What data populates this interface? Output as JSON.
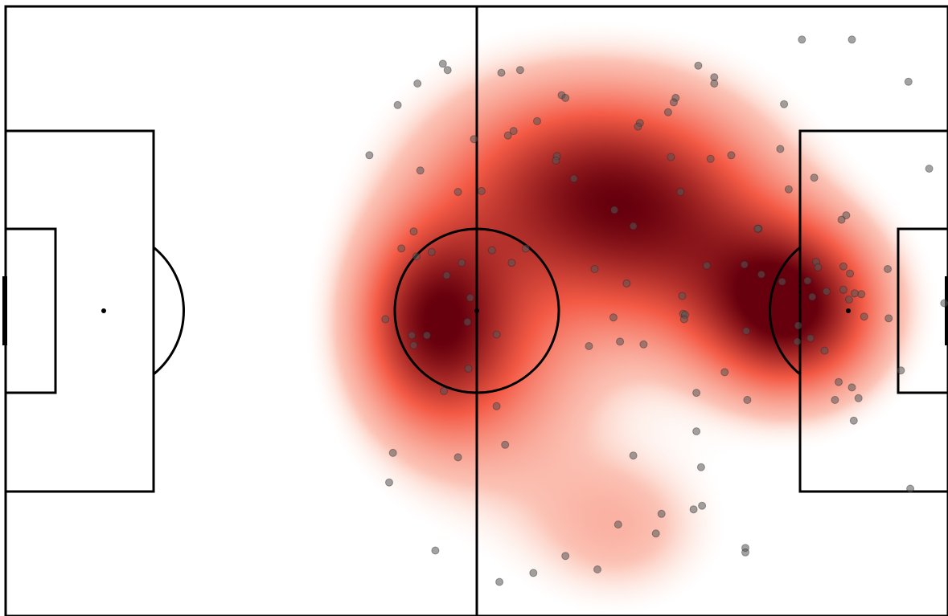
{
  "chart_data": {
    "type": "scatter",
    "description_free": true,
    "x_range": [
      0,
      100
    ],
    "y_range": [
      0,
      68
    ],
    "colors": {
      "heat_low": "#fee8dd",
      "heat_mid": "#f45a45",
      "heat_high": "#67000d",
      "marker": "#555555",
      "lines": "#000000",
      "pitch": "#ffffff"
    },
    "hotspots": [
      {
        "x": 83.3,
        "y": 34.3,
        "sx": 6.5,
        "sy": 6.5,
        "w": 1.0
      },
      {
        "x": 45.2,
        "y": 33.1,
        "sx": 5.5,
        "sy": 7.5,
        "w": 0.75
      },
      {
        "x": 59.0,
        "y": 48.2,
        "sx": 10.0,
        "sy": 8.0,
        "w": 0.62
      },
      {
        "x": 70.4,
        "y": 43.5,
        "sx": 9.0,
        "sy": 9.0,
        "w": 0.6
      },
      {
        "x": 65.0,
        "y": 10.0,
        "sx": 7.0,
        "sy": 6.0,
        "w": 0.22
      },
      {
        "x": 51.4,
        "y": 28.0,
        "sx": 8.0,
        "sy": 10.0,
        "w": 0.35
      }
    ],
    "points": [
      [
        84.5,
        64.3
      ],
      [
        89.8,
        64.3
      ],
      [
        46.4,
        61.6
      ],
      [
        46.9,
        60.9
      ],
      [
        52.6,
        60.6
      ],
      [
        54.6,
        60.9
      ],
      [
        73.5,
        61.4
      ],
      [
        75.2,
        60.1
      ],
      [
        75.2,
        59.4
      ],
      [
        95.8,
        59.6
      ],
      [
        43.7,
        59.4
      ],
      [
        41.6,
        57.0
      ],
      [
        59.0,
        58.1
      ],
      [
        59.4,
        57.8
      ],
      [
        71.1,
        57.8
      ],
      [
        70.9,
        57.3
      ],
      [
        70.3,
        56.2
      ],
      [
        82.6,
        57.1
      ],
      [
        56.4,
        55.2
      ],
      [
        67.3,
        55.0
      ],
      [
        67.1,
        54.6
      ],
      [
        53.9,
        54.1
      ],
      [
        53.3,
        53.6
      ],
      [
        49.7,
        53.2
      ],
      [
        38.6,
        51.4
      ],
      [
        58.5,
        51.3
      ],
      [
        58.4,
        50.8
      ],
      [
        70.6,
        51.2
      ],
      [
        74.8,
        51.0
      ],
      [
        77.0,
        51.4
      ],
      [
        82.2,
        52.1
      ],
      [
        44.0,
        49.7
      ],
      [
        60.3,
        48.8
      ],
      [
        85.8,
        48.9
      ],
      [
        83.1,
        47.6
      ],
      [
        98.0,
        49.9
      ],
      [
        48.0,
        47.3
      ],
      [
        50.5,
        47.4
      ],
      [
        71.6,
        47.3
      ],
      [
        64.6,
        45.3
      ],
      [
        89.2,
        44.7
      ],
      [
        88.7,
        44.2
      ],
      [
        66.6,
        43.5
      ],
      [
        79.9,
        43.2
      ],
      [
        43.3,
        42.9
      ],
      [
        79.8,
        43.2
      ],
      [
        42.0,
        41.0
      ],
      [
        55.2,
        41.0
      ],
      [
        51.6,
        40.8
      ],
      [
        45.2,
        40.6
      ],
      [
        43.6,
        40.1
      ],
      [
        48.4,
        39.4
      ],
      [
        53.7,
        39.4
      ],
      [
        74.4,
        39.1
      ],
      [
        78.4,
        39.2
      ],
      [
        86.0,
        39.5
      ],
      [
        86.2,
        38.9
      ],
      [
        88.9,
        39.0
      ],
      [
        93.6,
        38.7
      ],
      [
        62.5,
        38.7
      ],
      [
        46.8,
        38.0
      ],
      [
        65.9,
        37.1
      ],
      [
        80.2,
        38.1
      ],
      [
        85.1,
        37.4
      ],
      [
        89.6,
        38.2
      ],
      [
        82.4,
        37.3
      ],
      [
        87.1,
        36.2
      ],
      [
        88.9,
        36.4
      ],
      [
        90.8,
        35.9
      ],
      [
        49.3,
        35.5
      ],
      [
        71.8,
        35.7
      ],
      [
        85.6,
        35.6
      ],
      [
        71.9,
        33.7
      ],
      [
        90.1,
        36.0
      ],
      [
        89.5,
        35.3
      ],
      [
        99.6,
        34.9
      ],
      [
        40.3,
        33.1
      ],
      [
        64.5,
        33.3
      ],
      [
        72.1,
        33.6
      ],
      [
        72.0,
        33.1
      ],
      [
        91.1,
        33.4
      ],
      [
        93.7,
        33.2
      ],
      [
        49.0,
        32.8
      ],
      [
        78.6,
        31.8
      ],
      [
        84.1,
        32.4
      ],
      [
        43.1,
        31.3
      ],
      [
        44.7,
        31.3
      ],
      [
        85.4,
        31.0
      ],
      [
        84.0,
        30.6
      ],
      [
        52.1,
        31.4
      ],
      [
        43.3,
        30.2
      ],
      [
        65.2,
        30.6
      ],
      [
        67.7,
        30.3
      ],
      [
        61.9,
        30.1
      ],
      [
        86.9,
        29.6
      ],
      [
        49.1,
        27.6
      ],
      [
        76.3,
        27.2
      ],
      [
        95.0,
        27.4
      ],
      [
        88.4,
        26.1
      ],
      [
        89.8,
        25.5
      ],
      [
        46.5,
        25.1
      ],
      [
        73.3,
        24.9
      ],
      [
        78.7,
        24.1
      ],
      [
        88.0,
        24.1
      ],
      [
        90.5,
        24.3
      ],
      [
        52.1,
        23.4
      ],
      [
        90.0,
        21.8
      ],
      [
        73.3,
        20.6
      ],
      [
        53.0,
        19.1
      ],
      [
        41.1,
        18.2
      ],
      [
        48.0,
        17.7
      ],
      [
        66.6,
        17.9
      ],
      [
        73.8,
        16.6
      ],
      [
        96.0,
        14.2
      ],
      [
        40.7,
        14.9
      ],
      [
        73.9,
        12.3
      ],
      [
        73.0,
        11.9
      ],
      [
        69.6,
        11.4
      ],
      [
        65.0,
        10.2
      ],
      [
        69.0,
        9.2
      ],
      [
        78.5,
        7.6
      ],
      [
        78.5,
        7.1
      ],
      [
        45.6,
        7.3
      ],
      [
        59.4,
        6.7
      ],
      [
        62.8,
        5.2
      ],
      [
        56.0,
        4.8
      ],
      [
        52.4,
        3.8
      ]
    ]
  }
}
